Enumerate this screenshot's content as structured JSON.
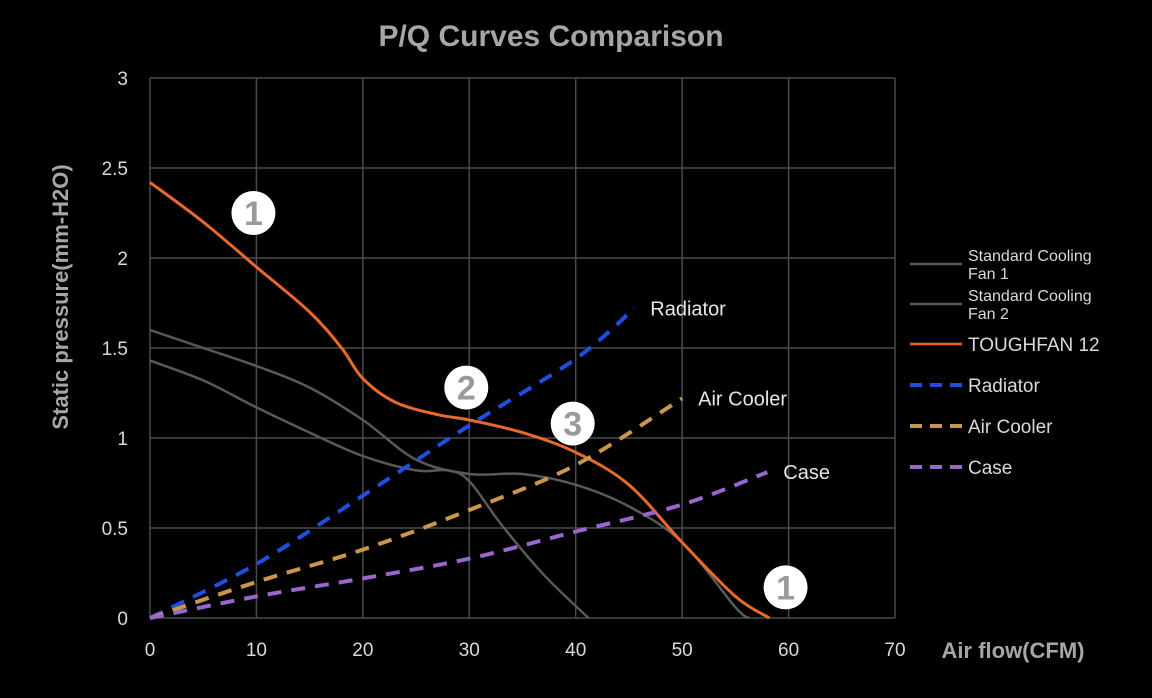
{
  "chart_data": {
    "type": "line",
    "title": "P/Q Curves Comparison",
    "xlabel": "Air flow(CFM)",
    "ylabel": "Static pressure(mm-H2O)",
    "xlim": [
      0,
      70
    ],
    "ylim": [
      0,
      3
    ],
    "x_ticks": [
      "0",
      "10",
      "20",
      "30",
      "40",
      "50",
      "60",
      "70"
    ],
    "y_ticks": [
      "0",
      "0.5",
      "1",
      "1.5",
      "2",
      "2.5",
      "3"
    ],
    "grid": true,
    "legend_position": "right",
    "series": [
      {
        "name": "Standard Cooling Fan 1",
        "legend_lines": [
          "Standard Cooling",
          "Fan 1"
        ],
        "color": "#595959",
        "style": "solid",
        "points": [
          [
            0,
            1.6
          ],
          [
            5,
            1.5
          ],
          [
            10,
            1.4
          ],
          [
            15,
            1.28
          ],
          [
            20,
            1.1
          ],
          [
            25,
            0.88
          ],
          [
            30,
            0.8
          ],
          [
            35,
            0.8
          ],
          [
            40,
            0.74
          ],
          [
            45,
            0.62
          ],
          [
            50,
            0.42
          ],
          [
            55,
            0.06
          ],
          [
            56.3,
            0
          ]
        ]
      },
      {
        "name": "Standard Cooling Fan 2",
        "legend_lines": [
          "Standard Cooling",
          "Fan 2"
        ],
        "color": "#595959",
        "style": "solid",
        "points": [
          [
            0,
            1.43
          ],
          [
            5,
            1.32
          ],
          [
            10,
            1.17
          ],
          [
            15,
            1.03
          ],
          [
            20,
            0.9
          ],
          [
            25,
            0.82
          ],
          [
            28,
            0.82
          ],
          [
            30,
            0.76
          ],
          [
            33,
            0.52
          ],
          [
            37,
            0.24
          ],
          [
            41.2,
            0
          ]
        ]
      },
      {
        "name": "TOUGHFAN 12",
        "legend_lines": [
          "TOUGHFAN 12"
        ],
        "color": "#e8692a",
        "style": "solid",
        "points": [
          [
            0,
            2.42
          ],
          [
            5,
            2.2
          ],
          [
            10,
            1.95
          ],
          [
            15,
            1.7
          ],
          [
            18,
            1.5
          ],
          [
            20,
            1.33
          ],
          [
            23,
            1.2
          ],
          [
            27,
            1.13
          ],
          [
            30,
            1.1
          ],
          [
            35,
            1.03
          ],
          [
            40,
            0.92
          ],
          [
            45,
            0.74
          ],
          [
            50,
            0.42
          ],
          [
            55,
            0.12
          ],
          [
            58.2,
            0
          ]
        ]
      },
      {
        "name": "Radiator",
        "legend_lines": [
          "Radiator"
        ],
        "end_label": "Radiator",
        "color": "#1f4ee0",
        "style": "dashed",
        "points": [
          [
            0,
            0
          ],
          [
            10,
            0.3
          ],
          [
            20,
            0.68
          ],
          [
            30,
            1.07
          ],
          [
            40,
            1.44
          ],
          [
            45.5,
            1.72
          ]
        ]
      },
      {
        "name": "Air Cooler",
        "legend_lines": [
          "Air Cooler"
        ],
        "end_label": "Air Cooler",
        "color": "#c9964a",
        "style": "dashed",
        "points": [
          [
            0,
            0
          ],
          [
            10,
            0.2
          ],
          [
            20,
            0.38
          ],
          [
            30,
            0.6
          ],
          [
            40,
            0.85
          ],
          [
            50,
            1.22
          ]
        ]
      },
      {
        "name": "Case",
        "legend_lines": [
          "Case"
        ],
        "end_label": "Case",
        "color": "#9966cc",
        "style": "dashed",
        "points": [
          [
            0,
            0
          ],
          [
            10,
            0.12
          ],
          [
            20,
            0.22
          ],
          [
            30,
            0.33
          ],
          [
            40,
            0.48
          ],
          [
            50,
            0.63
          ],
          [
            58,
            0.81
          ]
        ]
      }
    ],
    "annotations": [
      {
        "text": "1",
        "x": 10,
        "y": 2.25
      },
      {
        "text": "2",
        "x": 30,
        "y": 1.28
      },
      {
        "text": "3",
        "x": 40,
        "y": 1.08
      },
      {
        "text": "1",
        "x": 60,
        "y": 0.17
      }
    ]
  }
}
